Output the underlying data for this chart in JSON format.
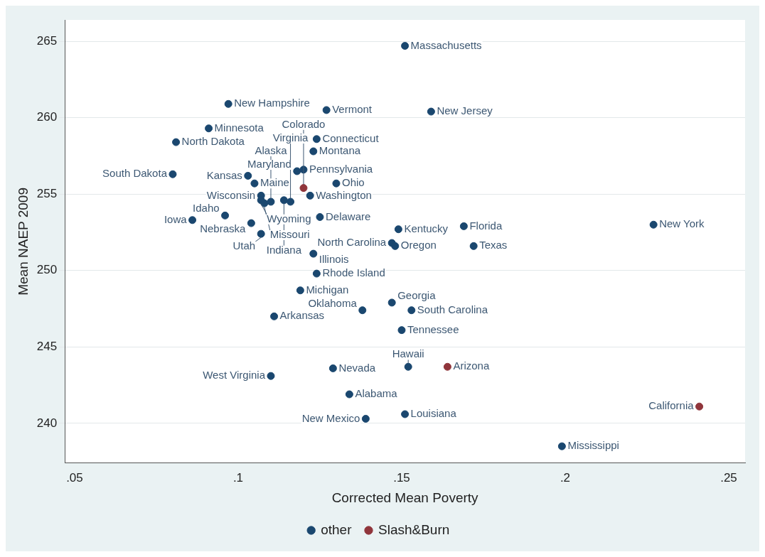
{
  "chart_data": {
    "type": "scatter",
    "xlabel": "Corrected Mean Poverty",
    "ylabel": "Mean NAEP 2009",
    "xlim": [
      0.047,
      0.255
    ],
    "ylim": [
      237.4,
      266.4
    ],
    "xticks": [
      {
        "value": 0.05,
        "label": ".05"
      },
      {
        "value": 0.1,
        "label": ".1"
      },
      {
        "value": 0.15,
        "label": ".15"
      },
      {
        "value": 0.2,
        "label": ".2"
      },
      {
        "value": 0.25,
        "label": ".25"
      }
    ],
    "yticks": [
      240,
      245,
      250,
      255,
      260,
      265
    ],
    "grid": "y",
    "legend": "bottom",
    "marker": "circle",
    "series": [
      {
        "name": "other",
        "color": "#1a476f",
        "x": [
          0.151,
          0.097,
          0.127,
          0.159,
          0.091,
          0.081,
          0.124,
          0.123,
          0.12,
          0.08,
          0.103,
          0.118,
          0.105,
          0.13,
          0.122,
          0.107,
          0.107,
          0.108,
          0.11,
          0.114,
          0.116,
          0.086,
          0.096,
          0.104,
          0.125,
          0.107,
          0.149,
          0.169,
          0.227,
          0.147,
          0.148,
          0.172,
          0.123,
          0.124,
          0.119,
          0.147,
          0.111,
          0.138,
          0.153,
          0.15,
          0.11,
          0.129,
          0.152,
          0.134,
          0.139,
          0.151,
          0.199
        ],
        "values": [
          264.7,
          260.9,
          260.5,
          260.4,
          259.3,
          258.4,
          258.6,
          257.8,
          256.6,
          256.3,
          256.2,
          256.5,
          255.7,
          255.7,
          254.9,
          254.9,
          254.6,
          254.4,
          254.5,
          254.6,
          254.5,
          253.3,
          253.6,
          253.1,
          253.5,
          252.4,
          252.7,
          252.9,
          253.0,
          251.8,
          251.6,
          251.6,
          251.1,
          249.8,
          248.7,
          247.9,
          247.0,
          247.4,
          247.4,
          246.1,
          243.1,
          243.6,
          243.7,
          241.9,
          240.3,
          240.6,
          238.5
        ]
      },
      {
        "name": "Slash&Burn",
        "color": "#90353b",
        "x": [
          0.12,
          0.164,
          0.241
        ],
        "values": [
          255.4,
          243.7,
          241.1
        ]
      }
    ],
    "annotations": [
      {
        "text": "Massachusetts",
        "x": 0.151,
        "y": 264.7
      },
      {
        "text": "New Hampshire",
        "x": 0.097,
        "y": 260.9
      },
      {
        "text": "Vermont",
        "x": 0.127,
        "y": 260.5
      },
      {
        "text": "New Jersey",
        "x": 0.159,
        "y": 260.4
      },
      {
        "text": "Minnesota",
        "x": 0.091,
        "y": 259.3
      },
      {
        "text": "North Dakota",
        "x": 0.081,
        "y": 258.4
      },
      {
        "text": "Connecticut",
        "x": 0.124,
        "y": 258.6
      },
      {
        "text": "Montana",
        "x": 0.123,
        "y": 257.8
      },
      {
        "text": "Pennsylvania",
        "x": 0.12,
        "y": 256.6
      },
      {
        "text": "South Dakota",
        "x": 0.08,
        "y": 256.3
      },
      {
        "text": "Kansas",
        "x": 0.103,
        "y": 256.2
      },
      {
        "text": "Maryland",
        "x": 0.118,
        "y": 256.5
      },
      {
        "text": "Maine",
        "x": 0.105,
        "y": 255.7
      },
      {
        "text": "Ohio",
        "x": 0.13,
        "y": 255.7
      },
      {
        "text": "Washington",
        "x": 0.122,
        "y": 254.9
      },
      {
        "text": "Wisconsin",
        "x": 0.107,
        "y": 254.9
      },
      {
        "text": "Wyoming",
        "x": 0.107,
        "y": 254.6
      },
      {
        "text": "Missouri",
        "x": 0.108,
        "y": 254.4
      },
      {
        "text": "Alaska",
        "x": 0.11,
        "y": 254.5
      },
      {
        "text": "Indiana",
        "x": 0.114,
        "y": 254.6
      },
      {
        "text": "Virginia",
        "x": 0.116,
        "y": 254.5
      },
      {
        "text": "Iowa",
        "x": 0.086,
        "y": 253.3
      },
      {
        "text": "Idaho",
        "x": 0.096,
        "y": 253.6
      },
      {
        "text": "Nebraska",
        "x": 0.104,
        "y": 253.1
      },
      {
        "text": "Delaware",
        "x": 0.125,
        "y": 253.5
      },
      {
        "text": "Utah",
        "x": 0.107,
        "y": 252.4
      },
      {
        "text": "Kentucky",
        "x": 0.149,
        "y": 252.7
      },
      {
        "text": "Florida",
        "x": 0.169,
        "y": 252.9
      },
      {
        "text": "New York",
        "x": 0.227,
        "y": 253.0
      },
      {
        "text": "North Carolina",
        "x": 0.147,
        "y": 251.8
      },
      {
        "text": "Oregon",
        "x": 0.148,
        "y": 251.6
      },
      {
        "text": "Texas",
        "x": 0.172,
        "y": 251.6
      },
      {
        "text": "Illinois",
        "x": 0.123,
        "y": 251.1
      },
      {
        "text": "Rhode Island",
        "x": 0.124,
        "y": 249.8
      },
      {
        "text": "Michigan",
        "x": 0.119,
        "y": 248.7
      },
      {
        "text": "Georgia",
        "x": 0.147,
        "y": 247.9
      },
      {
        "text": "Arkansas",
        "x": 0.111,
        "y": 247.0
      },
      {
        "text": "Oklahoma",
        "x": 0.138,
        "y": 247.4
      },
      {
        "text": "South Carolina",
        "x": 0.153,
        "y": 247.4
      },
      {
        "text": "Tennessee",
        "x": 0.15,
        "y": 246.1
      },
      {
        "text": "West Virginia",
        "x": 0.11,
        "y": 243.1
      },
      {
        "text": "Nevada",
        "x": 0.129,
        "y": 243.6
      },
      {
        "text": "Hawaii",
        "x": 0.152,
        "y": 243.7
      },
      {
        "text": "Alabama",
        "x": 0.134,
        "y": 241.9
      },
      {
        "text": "New Mexico",
        "x": 0.139,
        "y": 240.3
      },
      {
        "text": "Louisiana",
        "x": 0.151,
        "y": 240.6
      },
      {
        "text": "Mississippi",
        "x": 0.199,
        "y": 238.5
      },
      {
        "text": "Colorado",
        "x": 0.12,
        "y": 255.4
      },
      {
        "text": "Arizona",
        "x": 0.164,
        "y": 243.7
      },
      {
        "text": "California",
        "x": 0.241,
        "y": 241.1
      }
    ]
  }
}
